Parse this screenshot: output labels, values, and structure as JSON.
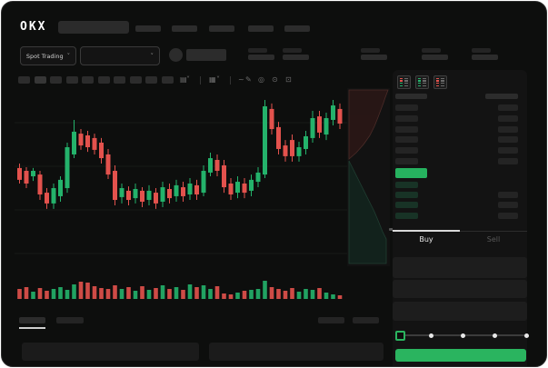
{
  "header": {
    "logo_text": "OKX",
    "nav_item_count": 5,
    "search_value": ""
  },
  "ticker": {
    "market_selector_label": "Spot Trading",
    "stat_group_count": 5
  },
  "chart_toolbar": {
    "timeframe_button_count": 10,
    "icons": [
      "indicator-icon",
      "chevron-down-icon",
      "separator",
      "candle-style-icon",
      "chevron-down-icon",
      "separator",
      "line-tool-icon",
      "draw-icon",
      "camera-icon",
      "settings-clock-icon",
      "fullscreen-icon"
    ]
  },
  "chart_data": {
    "type": "candlestick",
    "title": "",
    "xlabel": "",
    "ylabel": "",
    "y_scale": [
      0,
      100
    ],
    "grid": true,
    "colors": {
      "up": "#24b26b",
      "down": "#e3524d"
    },
    "candles": [
      [
        55.2,
        57.7,
        46.4,
        48.5
      ],
      [
        53.6,
        55.7,
        43.8,
        46.4
      ],
      [
        50.5,
        55.2,
        47.9,
        53.6
      ],
      [
        51.5,
        53.6,
        37.1,
        40.2
      ],
      [
        41.2,
        43.8,
        32.0,
        35.1
      ],
      [
        35.1,
        46.4,
        32.0,
        43.8
      ],
      [
        39.2,
        50.5,
        36.1,
        48.5
      ],
      [
        43.8,
        69.6,
        41.2,
        67.0
      ],
      [
        62.9,
        82.5,
        60.8,
        75.8
      ],
      [
        74.7,
        77.3,
        65.5,
        68.0
      ],
      [
        73.7,
        76.3,
        64.4,
        67.0
      ],
      [
        72.2,
        74.7,
        62.9,
        65.5
      ],
      [
        69.6,
        72.2,
        57.7,
        60.8
      ],
      [
        62.9,
        66.0,
        49.0,
        51.5
      ],
      [
        53.6,
        56.7,
        34.0,
        37.1
      ],
      [
        38.7,
        46.4,
        35.1,
        43.8
      ],
      [
        42.3,
        44.8,
        34.0,
        37.1
      ],
      [
        38.1,
        46.4,
        35.1,
        43.3
      ],
      [
        42.3,
        44.3,
        33.0,
        36.1
      ],
      [
        37.1,
        45.4,
        34.0,
        42.3
      ],
      [
        41.2,
        43.8,
        32.0,
        35.1
      ],
      [
        36.1,
        47.4,
        33.0,
        44.3
      ],
      [
        43.3,
        46.4,
        35.1,
        38.1
      ],
      [
        39.2,
        48.5,
        36.1,
        45.4
      ],
      [
        44.3,
        47.4,
        36.1,
        39.2
      ],
      [
        40.2,
        49.5,
        37.1,
        46.4
      ],
      [
        45.4,
        48.5,
        37.1,
        40.2
      ],
      [
        41.2,
        56.7,
        39.2,
        53.6
      ],
      [
        52.6,
        63.9,
        50.5,
        60.8
      ],
      [
        59.8,
        62.9,
        50.5,
        53.6
      ],
      [
        56.7,
        59.8,
        41.2,
        44.3
      ],
      [
        46.4,
        49.5,
        37.1,
        40.2
      ],
      [
        41.2,
        50.5,
        38.1,
        47.4
      ],
      [
        46.4,
        49.5,
        38.1,
        41.2
      ],
      [
        42.3,
        51.5,
        39.2,
        48.5
      ],
      [
        47.4,
        55.7,
        44.3,
        52.6
      ],
      [
        51.5,
        93.8,
        49.5,
        90.2
      ],
      [
        88.7,
        91.8,
        74.2,
        77.3
      ],
      [
        78.4,
        81.4,
        62.9,
        66.0
      ],
      [
        68.0,
        71.1,
        58.8,
        61.9
      ],
      [
        71.1,
        74.2,
        58.8,
        61.9
      ],
      [
        61.9,
        70.1,
        58.8,
        67.0
      ],
      [
        66.0,
        76.3,
        62.9,
        73.2
      ],
      [
        72.2,
        87.6,
        69.6,
        83.5
      ],
      [
        84.5,
        87.6,
        72.2,
        75.3
      ],
      [
        74.2,
        86.6,
        71.1,
        83.5
      ],
      [
        82.5,
        93.8,
        79.4,
        90.7
      ],
      [
        88.7,
        91.8,
        77.3,
        80.4
      ]
    ],
    "volume": [
      11,
      13,
      8,
      12,
      9,
      11,
      13,
      10,
      16,
      19,
      18,
      14,
      12,
      11,
      15,
      11,
      13,
      9,
      14,
      10,
      12,
      15,
      11,
      13,
      10,
      16,
      13,
      15,
      11,
      14,
      6,
      5,
      7,
      9,
      10,
      11,
      20,
      13,
      11,
      9,
      12,
      8,
      11,
      10,
      12,
      7,
      5,
      4
    ],
    "depth": {
      "asks_line": [
        [
          45,
          2
        ],
        [
          42,
          10
        ],
        [
          40,
          16
        ],
        [
          37,
          24
        ],
        [
          34,
          32
        ],
        [
          30,
          42
        ],
        [
          25,
          52
        ],
        [
          18,
          62
        ],
        [
          10,
          71
        ],
        [
          2,
          78
        ]
      ],
      "bids_line": [
        [
          2,
          80
        ],
        [
          7,
          90
        ],
        [
          12,
          100
        ],
        [
          18,
          112
        ],
        [
          24,
          124
        ],
        [
          30,
          136
        ],
        [
          35,
          148
        ],
        [
          39,
          158
        ],
        [
          43,
          166
        ]
      ],
      "ask_fill": "#3a1b18",
      "ask_stroke": "#7a403a",
      "bid_fill": "#11States",
      "bid_fill_fixed": "#123226",
      "bid_stroke": "#2f6b52"
    }
  },
  "order_book": {
    "view_icons": [
      "book-both-icon",
      "book-bids-icon",
      "book-asks-icon"
    ],
    "ask_rows": 6,
    "last_price_color": "#26b25f",
    "bid_rows": 4,
    "bid_amount_visible": [
      false,
      true,
      true,
      true
    ]
  },
  "trade_panel": {
    "tabs": [
      {
        "label": "Buy",
        "active": true
      },
      {
        "label": "Sell",
        "active": false
      }
    ],
    "field_count": 3,
    "slider_steps": 5,
    "submit_color": "#2ab45f"
  },
  "bottom_bar": {
    "tab_count": 2,
    "right_action_count": 2,
    "panel_count": 2
  }
}
